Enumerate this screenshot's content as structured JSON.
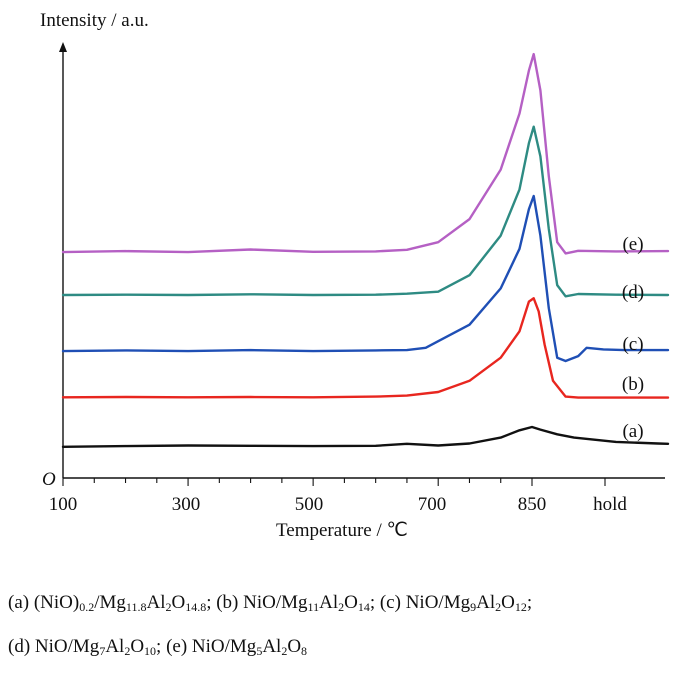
{
  "chart_data": {
    "type": "line",
    "ylabel": "Intensity / a.u.",
    "xlabel": "Temperature / ℃",
    "origin_label": "O",
    "x_ticks": [
      "100",
      "300",
      "500",
      "700",
      "850",
      "hold"
    ],
    "xlim": [
      100,
      1012
    ],
    "x_segments": "linear 100-850 ℃, then isothermal hold segment",
    "yaxis_ticks": false,
    "grid": false,
    "legend": "none; each curve labelled at its right end",
    "series": [
      {
        "name": "(a)",
        "color": "#111111",
        "x": [
          100,
          200,
          300,
          400,
          500,
          600,
          650,
          700,
          750,
          800,
          830,
          850,
          860,
          880,
          900,
          950,
          1000,
          1012
        ],
        "y": [
          4.0,
          4.2,
          4.4,
          4.3,
          4.2,
          4.3,
          4.9,
          4.4,
          5.0,
          6.8,
          9.0,
          10.0,
          9.2,
          7.8,
          6.8,
          5.5,
          5.0,
          4.9
        ]
      },
      {
        "name": "(b)",
        "color": "#e8261f",
        "x": [
          100,
          200,
          300,
          400,
          500,
          600,
          650,
          700,
          750,
          800,
          830,
          845,
          852,
          858,
          865,
          875,
          890,
          905,
          950,
          1012
        ],
        "y": [
          19.0,
          19.1,
          19.0,
          19.1,
          19.0,
          19.2,
          19.5,
          20.6,
          24.0,
          31.0,
          39.0,
          48.0,
          49.0,
          45.0,
          35.0,
          24.0,
          19.2,
          18.9,
          18.9,
          18.9
        ]
      },
      {
        "name": "(c)",
        "color": "#1f4fb5",
        "x": [
          100,
          200,
          300,
          400,
          500,
          600,
          650,
          680,
          700,
          750,
          800,
          830,
          845,
          852,
          860,
          870,
          880,
          890,
          905,
          915,
          935,
          960,
          1012
        ],
        "y": [
          33.0,
          33.2,
          33.0,
          33.3,
          33.0,
          33.2,
          33.3,
          34.0,
          36.0,
          41.0,
          52.0,
          64.0,
          76.0,
          80.0,
          68.0,
          46.0,
          31.0,
          30.0,
          31.5,
          34.0,
          33.5,
          33.3,
          33.3
        ]
      },
      {
        "name": "(d)",
        "color": "#2e8b83",
        "x": [
          100,
          200,
          300,
          400,
          500,
          600,
          650,
          700,
          750,
          800,
          830,
          845,
          852,
          860,
          870,
          880,
          890,
          905,
          950,
          1012
        ],
        "y": [
          50.0,
          50.1,
          50.0,
          50.2,
          50.0,
          50.1,
          50.4,
          51.0,
          56.0,
          68.0,
          82.0,
          96.0,
          101.0,
          92.0,
          70.0,
          53.0,
          49.6,
          50.3,
          50.1,
          50.0
        ]
      },
      {
        "name": "(e)",
        "color": "#b560c4",
        "x": [
          100,
          200,
          300,
          400,
          500,
          600,
          650,
          700,
          750,
          800,
          830,
          845,
          852,
          860,
          870,
          880,
          890,
          905,
          950,
          1012
        ],
        "y": [
          63.0,
          63.3,
          63.0,
          63.8,
          63.1,
          63.2,
          63.7,
          66.0,
          73.0,
          88.0,
          105.0,
          118.0,
          123.0,
          112.0,
          86.0,
          66.0,
          62.6,
          63.4,
          63.2,
          63.3
        ]
      }
    ]
  },
  "caption": {
    "line1": [
      {
        "text": "(a) (NiO)"
      },
      {
        "sub": "0.2"
      },
      {
        "text": "/Mg"
      },
      {
        "sub": "11.8"
      },
      {
        "text": "Al"
      },
      {
        "sub": "2"
      },
      {
        "text": "O"
      },
      {
        "sub": "14.8"
      },
      {
        "text": "; (b) NiO/Mg"
      },
      {
        "sub": "11"
      },
      {
        "text": "Al"
      },
      {
        "sub": "2"
      },
      {
        "text": "O"
      },
      {
        "sub": "14"
      },
      {
        "text": "; (c) NiO/Mg"
      },
      {
        "sub": "9"
      },
      {
        "text": "Al"
      },
      {
        "sub": "2"
      },
      {
        "text": "O"
      },
      {
        "sub": "12"
      },
      {
        "text": ";"
      }
    ],
    "line2": [
      {
        "text": "(d) NiO/Mg"
      },
      {
        "sub": "7"
      },
      {
        "text": "Al"
      },
      {
        "sub": "2"
      },
      {
        "text": "O"
      },
      {
        "sub": "10"
      },
      {
        "text": "; (e) NiO/Mg"
      },
      {
        "sub": "5"
      },
      {
        "text": "Al"
      },
      {
        "sub": "2"
      },
      {
        "text": "O"
      },
      {
        "sub": "8"
      }
    ]
  }
}
